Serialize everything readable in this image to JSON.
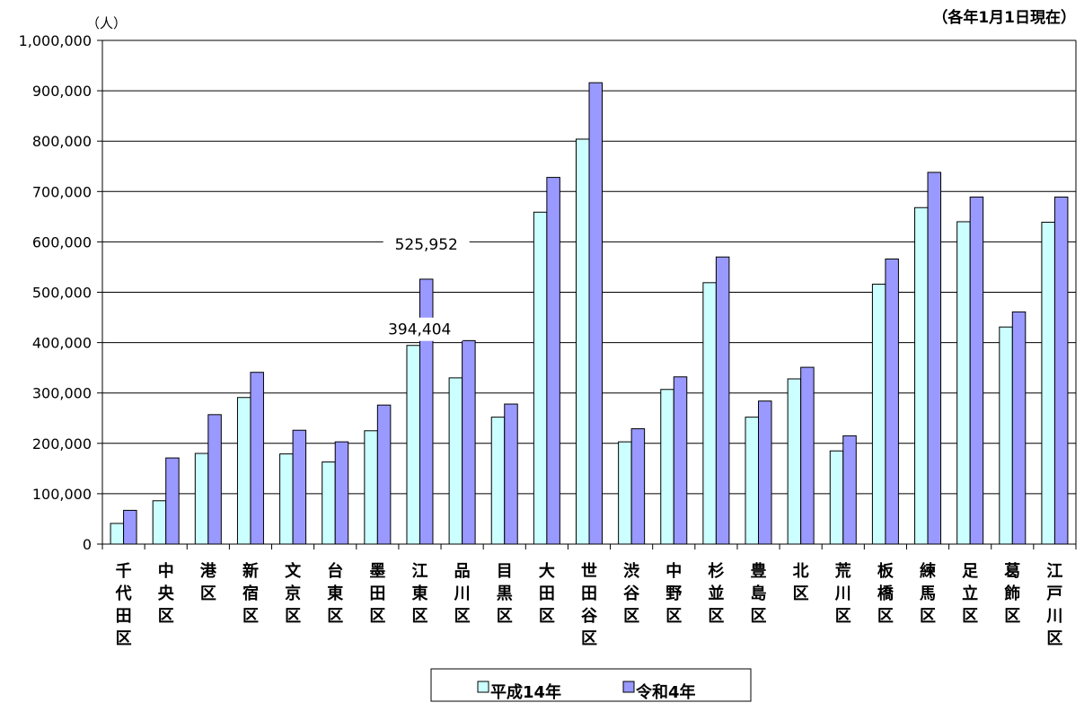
{
  "chart_data": {
    "type": "bar",
    "unit_label": "（人）",
    "note": "（各年1月1日現在）",
    "ylim": [
      0,
      1000000
    ],
    "yticks": [
      0,
      100000,
      200000,
      300000,
      400000,
      500000,
      600000,
      700000,
      800000,
      900000,
      1000000
    ],
    "ytick_labels": [
      "0",
      "100,000",
      "200,000",
      "300,000",
      "400,000",
      "500,000",
      "600,000",
      "700,000",
      "800,000",
      "900,000",
      "1,000,000"
    ],
    "grid": true,
    "legend_position": "bottom-center",
    "categories": [
      "千代田区",
      "中央区",
      "港区",
      "新宿区",
      "文京区",
      "台東区",
      "墨田区",
      "江東区",
      "品川区",
      "目黒区",
      "大田区",
      "世田谷区",
      "渋谷区",
      "中野区",
      "杉並区",
      "豊島区",
      "北区",
      "荒川区",
      "板橋区",
      "練馬区",
      "足立区",
      "葛飾区",
      "江戸川区"
    ],
    "series": [
      {
        "name": "平成14年",
        "color": "#ccffff",
        "values": [
          41000,
          86000,
          180000,
          291000,
          179000,
          163000,
          225000,
          394404,
          330000,
          252000,
          659000,
          804000,
          203000,
          307000,
          519000,
          252000,
          328000,
          185000,
          516000,
          668000,
          640000,
          431000,
          639000
        ]
      },
      {
        "name": "令和4年",
        "color": "#9999ff",
        "values": [
          67000,
          171000,
          257000,
          341000,
          226000,
          203000,
          276000,
          525952,
          404000,
          278000,
          728000,
          916000,
          229000,
          332000,
          570000,
          284000,
          351000,
          215000,
          566000,
          738000,
          689000,
          461000,
          689000
        ]
      }
    ],
    "annotations": [
      {
        "category": "江東区",
        "series": "平成14年",
        "text": "394,404"
      },
      {
        "category": "江東区",
        "series": "令和4年",
        "text": "525,952"
      }
    ]
  }
}
